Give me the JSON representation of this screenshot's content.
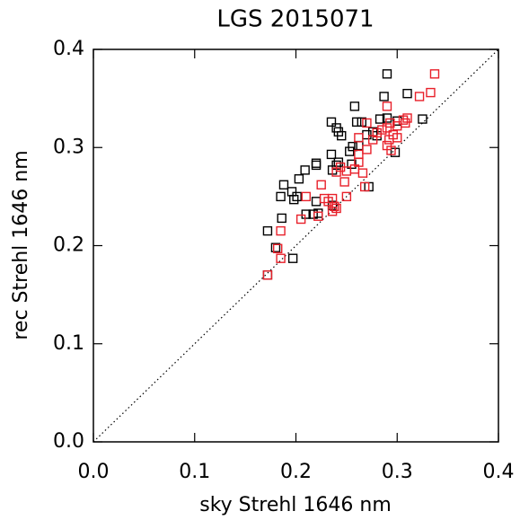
{
  "chart_data": {
    "type": "scatter",
    "title": "LGS 2015071",
    "x_label": "sky Strehl 1646 nm",
    "y_label": "rec Strehl 1646 nm",
    "xlim": [
      0,
      0.4
    ],
    "ylim": [
      0,
      0.4
    ],
    "xticks": [
      {
        "value": 0,
        "label": "0.0"
      },
      0.1,
      0.2,
      0.3,
      0.4
    ],
    "yticks": [
      {
        "value": 0,
        "label": "0.0"
      },
      0.1,
      0.2,
      0.3,
      0.4
    ],
    "series": [
      {
        "color": "#000000",
        "x": [
          0.29,
          0.31,
          0.287,
          0.258,
          0.26,
          0.265,
          0.235,
          0.24,
          0.245,
          0.242,
          0.283,
          0.29,
          0.3,
          0.325,
          0.27,
          0.276,
          0.262,
          0.256,
          0.253,
          0.28,
          0.298,
          0.235,
          0.236,
          0.24,
          0.242,
          0.22,
          0.255,
          0.272,
          0.22,
          0.209,
          0.203,
          0.22,
          0.201,
          0.198,
          0.188,
          0.185,
          0.196,
          0.217,
          0.236,
          0.222,
          0.21,
          0.186,
          0.18,
          0.172,
          0.197,
          0.172
        ],
        "y": [
          0.375,
          0.355,
          0.352,
          0.342,
          0.326,
          0.326,
          0.326,
          0.32,
          0.312,
          0.316,
          0.329,
          0.33,
          0.327,
          0.329,
          0.313,
          0.316,
          0.302,
          0.301,
          0.296,
          0.312,
          0.295,
          0.293,
          0.277,
          0.282,
          0.285,
          0.282,
          0.283,
          0.26,
          0.245,
          0.277,
          0.268,
          0.284,
          0.25,
          0.247,
          0.262,
          0.25,
          0.255,
          0.232,
          0.241,
          0.233,
          0.232,
          0.228,
          0.198,
          0.215,
          0.187,
          0.17
        ]
      },
      {
        "color": "#e8202a",
        "x": [
          0.337,
          0.333,
          0.322,
          0.29,
          0.31,
          0.306,
          0.308,
          0.293,
          0.3,
          0.27,
          0.29,
          0.285,
          0.296,
          0.3,
          0.292,
          0.29,
          0.294,
          0.28,
          0.276,
          0.262,
          0.27,
          0.262,
          0.262,
          0.258,
          0.266,
          0.25,
          0.244,
          0.24,
          0.248,
          0.268,
          0.236,
          0.238,
          0.232,
          0.236,
          0.24,
          0.25,
          0.225,
          0.228,
          0.21,
          0.222,
          0.205,
          0.185,
          0.182,
          0.185,
          0.172
        ],
        "y": [
          0.375,
          0.356,
          0.352,
          0.342,
          0.33,
          0.328,
          0.325,
          0.325,
          0.322,
          0.325,
          0.32,
          0.318,
          0.313,
          0.31,
          0.308,
          0.302,
          0.297,
          0.315,
          0.308,
          0.31,
          0.298,
          0.293,
          0.285,
          0.278,
          0.274,
          0.276,
          0.28,
          0.275,
          0.265,
          0.26,
          0.248,
          0.24,
          0.245,
          0.235,
          0.238,
          0.25,
          0.262,
          0.248,
          0.25,
          0.23,
          0.227,
          0.215,
          0.197,
          0.187,
          0.17
        ]
      }
    ]
  }
}
